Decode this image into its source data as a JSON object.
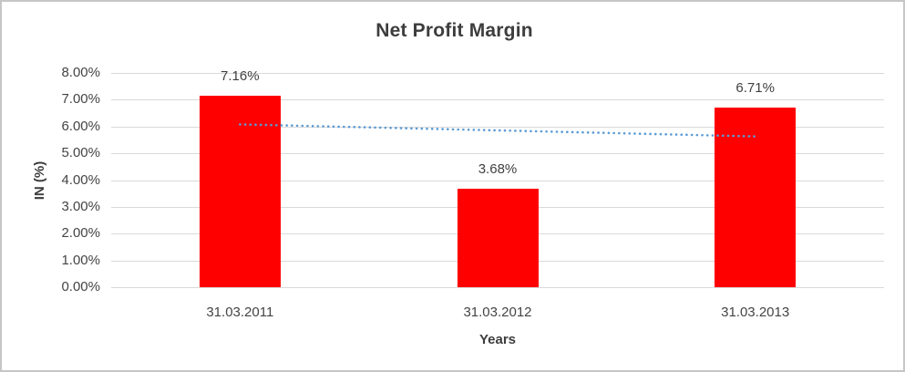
{
  "chart_data": {
    "type": "bar",
    "title": "Net Profit Margin",
    "xlabel": "Years",
    "ylabel": "IN (%)",
    "categories": [
      "31.03.2011",
      "31.03.2012",
      "31.03.2013"
    ],
    "values": [
      7.16,
      3.68,
      6.71
    ],
    "data_labels": [
      "7.16%",
      "3.68%",
      "6.71%"
    ],
    "yticks": [
      "8.00%",
      "7.00%",
      "6.00%",
      "5.00%",
      "4.00%",
      "3.00%",
      "2.00%",
      "1.00%",
      "0.00%"
    ],
    "ylim": [
      0,
      8
    ],
    "ytick_step": 1,
    "grid": true,
    "legend": "none",
    "bar_color": "#ff0000",
    "gridline_color": "#d9d9d9",
    "text_color": "#404040",
    "trendline": {
      "type": "linear",
      "style": "dotted",
      "color": "#5b9bd5",
      "start_value": 6.08,
      "end_value": 5.63
    }
  }
}
